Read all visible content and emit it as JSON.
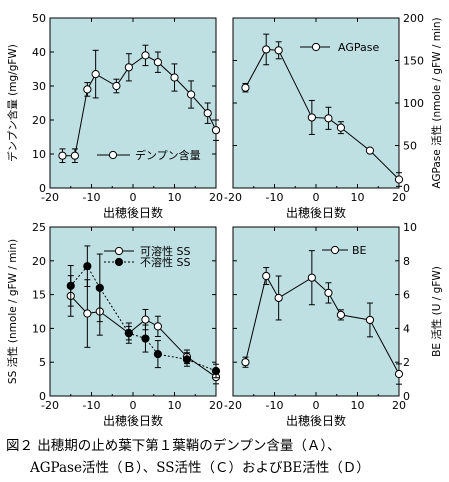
{
  "caption": {
    "line1": "図２ 出穂期の止め葉下第１葉鞘のデンプン含量（Ａ）、",
    "line2": "AGPase活性（Ｂ）、SS活性（Ｃ）およびBE活性（Ｄ）"
  },
  "colors": {
    "panel_bg": "#bfe0e3",
    "line": "#000000",
    "open_marker_fill": "#ffffff",
    "filled_marker_fill": "#000000"
  },
  "chart_data": [
    {
      "id": "A",
      "type": "line",
      "xlabel": "出穂後日数",
      "ylabel": "デンプン含量 (mg/gFW)",
      "xlim": [
        -20,
        20
      ],
      "ylim": [
        0,
        50
      ],
      "xticks": [
        -20,
        -10,
        0,
        10,
        20
      ],
      "yticks": [
        0,
        10,
        20,
        30,
        40,
        50
      ],
      "legend_position": "bottom-right",
      "series": [
        {
          "name": "デンプン含量",
          "marker": "open-circle",
          "linestyle": "solid",
          "x": [
            -17,
            -14,
            -11,
            -9,
            -4,
            -1,
            3,
            6,
            10,
            14,
            18,
            20
          ],
          "y": [
            9.5,
            9.5,
            29,
            33.5,
            30,
            35.5,
            39,
            37,
            32.5,
            27.5,
            22,
            17
          ],
          "err": [
            2,
            2,
            2,
            7,
            2,
            4,
            3,
            3,
            4,
            4,
            3,
            3
          ]
        }
      ]
    },
    {
      "id": "B",
      "type": "line",
      "xlabel": "出穂後日数",
      "ylabel": "AGPase 活性 (nmole / gFW / min)",
      "xlim": [
        -20,
        20
      ],
      "ylim": [
        0,
        200
      ],
      "xticks": [
        -20,
        -10,
        0,
        10,
        20
      ],
      "yticks": [
        0,
        50,
        100,
        150,
        200
      ],
      "legend_position": "top-right",
      "series": [
        {
          "name": "AGPase",
          "marker": "open-circle",
          "linestyle": "solid",
          "x": [
            -17,
            -12,
            -9,
            -1,
            3,
            6,
            13,
            20
          ],
          "y": [
            118,
            163,
            162,
            83,
            82,
            71,
            44,
            10
          ],
          "err": [
            5,
            18,
            10,
            20,
            13,
            7,
            3,
            8
          ]
        }
      ]
    },
    {
      "id": "C",
      "type": "line",
      "xlabel": "出穂後日数",
      "ylabel": "SS 活性 (nmole / gFW / min)",
      "xlim": [
        -20,
        20
      ],
      "ylim": [
        0,
        25
      ],
      "xticks": [
        -20,
        -10,
        0,
        10,
        20
      ],
      "yticks": [
        0,
        5,
        10,
        15,
        20,
        25
      ],
      "legend_position": "top-right",
      "series": [
        {
          "name": "可溶性 SS",
          "marker": "open-circle",
          "linestyle": "solid",
          "x": [
            -15,
            -11,
            -8,
            -1,
            3,
            6,
            13,
            20
          ],
          "y": [
            14.8,
            12.2,
            12.5,
            9.3,
            11.3,
            10.3,
            5.8,
            2.8
          ],
          "err": [
            3,
            5,
            3.5,
            1.5,
            1.5,
            1.5,
            1,
            1
          ]
        },
        {
          "name": "不溶性 SS",
          "marker": "filled-circle",
          "linestyle": "dotted",
          "x": [
            -15,
            -11,
            -8,
            -1,
            3,
            6,
            13,
            20
          ],
          "y": [
            16.3,
            19.2,
            16,
            9.3,
            8.5,
            6.2,
            5.4,
            3.7
          ],
          "err": [
            3,
            3,
            5,
            1,
            2,
            2,
            1,
            1
          ]
        }
      ]
    },
    {
      "id": "D",
      "type": "line",
      "xlabel": "出穂後日数",
      "ylabel": "BE 活性 (U / gFW)",
      "xlim": [
        -20,
        20
      ],
      "ylim": [
        0,
        10
      ],
      "xticks": [
        -20,
        -10,
        0,
        10,
        20
      ],
      "yticks": [
        0,
        2,
        4,
        6,
        8,
        10
      ],
      "legend_position": "top-right",
      "series": [
        {
          "name": "BE",
          "marker": "open-circle",
          "linestyle": "solid",
          "x": [
            -17,
            -12,
            -9,
            -1,
            3,
            6,
            13,
            20
          ],
          "y": [
            2,
            7.1,
            5.8,
            7,
            6.1,
            4.8,
            4.5,
            1.3
          ],
          "err": [
            0.3,
            0.5,
            1.3,
            1.6,
            0.6,
            0.3,
            1,
            0.6
          ]
        }
      ]
    }
  ]
}
